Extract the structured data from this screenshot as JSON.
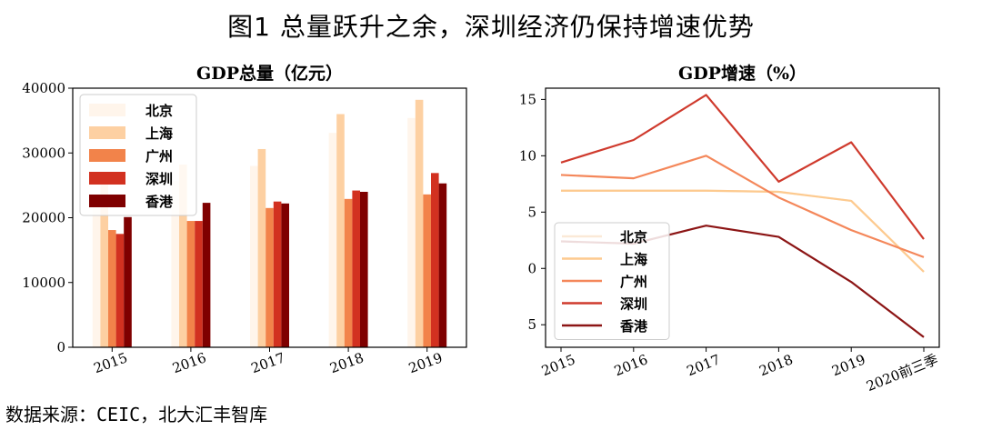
{
  "figure_title": "图1 总量跃升之余，深圳经济仍保持增速优势",
  "source_note": "数据来源：CEIC，北大汇丰智库",
  "chart_data": [
    {
      "type": "bar",
      "title": "GDP总量（亿元）",
      "categories": [
        "2015",
        "2016",
        "2017",
        "2018",
        "2019"
      ],
      "ylim": [
        0,
        40000
      ],
      "yticks": [
        "0",
        "10000",
        "20000",
        "30000",
        "40000"
      ],
      "legend_position": "top-left",
      "series": [
        {
          "name": "北京",
          "color": "#fff5eb",
          "values": [
            23000,
            25700,
            28000,
            33100,
            35400
          ]
        },
        {
          "name": "上海",
          "color": "#fdd0a2",
          "values": [
            25100,
            28200,
            30600,
            36000,
            38200
          ]
        },
        {
          "name": "广州",
          "color": "#f2834a",
          "values": [
            18100,
            19500,
            21500,
            22900,
            23600
          ]
        },
        {
          "name": "深圳",
          "color": "#d23120",
          "values": [
            17500,
            19500,
            22500,
            24200,
            26900
          ]
        },
        {
          "name": "香港",
          "color": "#7f0000",
          "values": [
            20100,
            22300,
            22200,
            24000,
            25300
          ]
        }
      ]
    },
    {
      "type": "line",
      "title": "GDP增速（%）",
      "categories": [
        "2015",
        "2016",
        "2017",
        "2018",
        "2019",
        "2020前三季"
      ],
      "ylim": [
        -7,
        16
      ],
      "yticks": [
        "0",
        "5",
        "10",
        "15"
      ],
      "ytick_values": [
        0,
        5,
        10,
        15
      ],
      "ytick_extra": {
        "label": "5",
        "value": -5
      },
      "legend_position": "lower-left",
      "series": [
        {
          "name": "北京",
          "color": "#fbe9d7",
          "values": [
            6.9,
            6.9,
            6.9,
            6.8,
            6.0,
            -0.3
          ]
        },
        {
          "name": "上海",
          "color": "#fdca8f",
          "values": [
            6.9,
            6.9,
            6.9,
            6.8,
            6.0,
            -0.3
          ]
        },
        {
          "name": "广州",
          "color": "#f4875a",
          "values": [
            8.3,
            8.0,
            10.0,
            6.3,
            3.4,
            1.0
          ]
        },
        {
          "name": "深圳",
          "color": "#cf3a2d",
          "values": [
            9.4,
            11.4,
            15.4,
            7.7,
            11.2,
            2.6
          ]
        },
        {
          "name": "香港",
          "color": "#8c1515",
          "values": [
            2.4,
            2.2,
            3.8,
            2.8,
            -1.2,
            -6.1
          ]
        }
      ]
    }
  ]
}
